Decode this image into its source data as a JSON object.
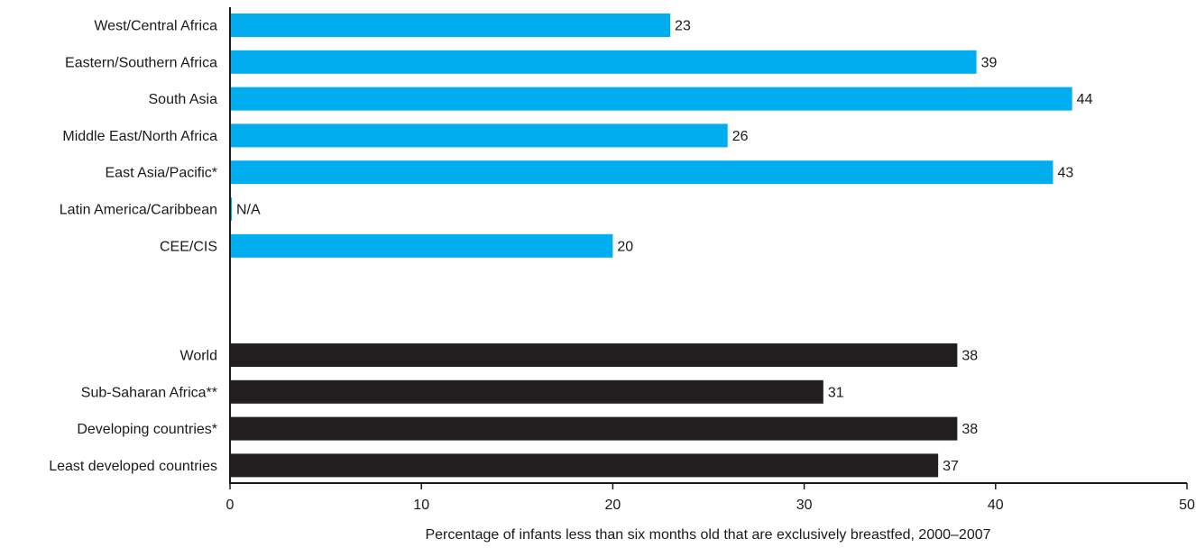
{
  "chart_data": {
    "type": "bar",
    "orientation": "horizontal",
    "xlabel": "Percentage of infants less than six months old that are exclusively breastfed, 2000–2007",
    "ylabel": "",
    "xlim": [
      0,
      50
    ],
    "xticks": [
      0,
      10,
      20,
      30,
      40,
      50
    ],
    "grid": false,
    "colors": {
      "regions": "#00aeef",
      "aggregates": "#231f20"
    },
    "groups": [
      {
        "group": "regions",
        "items": [
          {
            "category": "West/Central Africa",
            "value": 23,
            "label": "23"
          },
          {
            "category": "Eastern/Southern Africa",
            "value": 39,
            "label": "39"
          },
          {
            "category": "South Asia",
            "value": 44,
            "label": "44"
          },
          {
            "category": "Middle East/North Africa",
            "value": 26,
            "label": "26"
          },
          {
            "category": "East Asia/Pacific*",
            "value": 43,
            "label": "43"
          },
          {
            "category": "Latin America/Caribbean",
            "value": null,
            "label": "N/A"
          },
          {
            "category": "CEE/CIS",
            "value": 20,
            "label": "20"
          }
        ]
      },
      {
        "group": "aggregates",
        "items": [
          {
            "category": "World",
            "value": 38,
            "label": "38"
          },
          {
            "category": "Sub-Saharan Africa**",
            "value": 31,
            "label": "31"
          },
          {
            "category": "Developing countries*",
            "value": 38,
            "label": "38"
          },
          {
            "category": "Least developed countries",
            "value": 37,
            "label": "37"
          }
        ]
      }
    ]
  }
}
